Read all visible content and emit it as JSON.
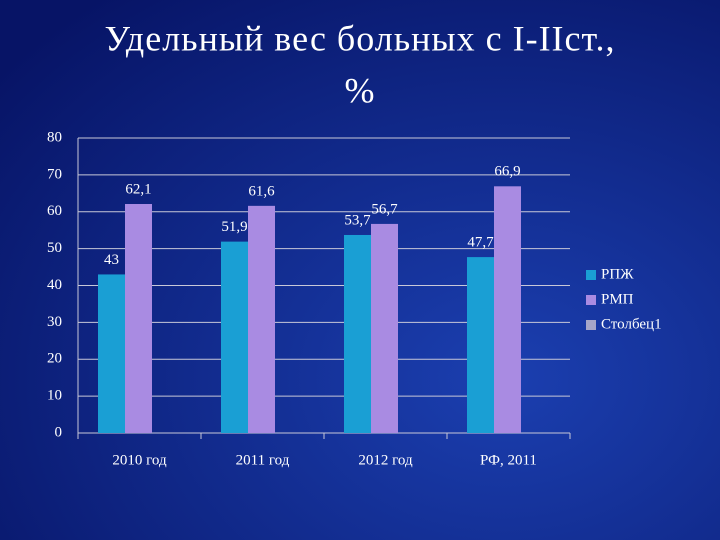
{
  "chart_data": {
    "type": "bar",
    "title": [
      "Удельный вес больных с I-IIст.,",
      "%"
    ],
    "categories": [
      "2010 год",
      "2011 год",
      "2012 год",
      "РФ, 2011"
    ],
    "series": [
      {
        "name": "РПЖ",
        "color": "#1a9fd4",
        "values": [
          43,
          51.9,
          53.7,
          47.7
        ],
        "value_labels": [
          "43",
          "51,9",
          "53,7",
          "47,7"
        ]
      },
      {
        "name": "РМП",
        "color": "#a98be2",
        "values": [
          62.1,
          61.6,
          56.7,
          66.9
        ],
        "value_labels": [
          "62,1",
          "61,6",
          "56,7",
          "66,9"
        ]
      },
      {
        "name": "Столбец1",
        "color": "#a6a6c8",
        "values": [
          null,
          null,
          null,
          null
        ]
      }
    ],
    "ylim": [
      0,
      80
    ],
    "yticks": [
      0,
      10,
      20,
      30,
      40,
      50,
      60,
      70,
      80
    ],
    "grid": true,
    "legend": "right"
  }
}
